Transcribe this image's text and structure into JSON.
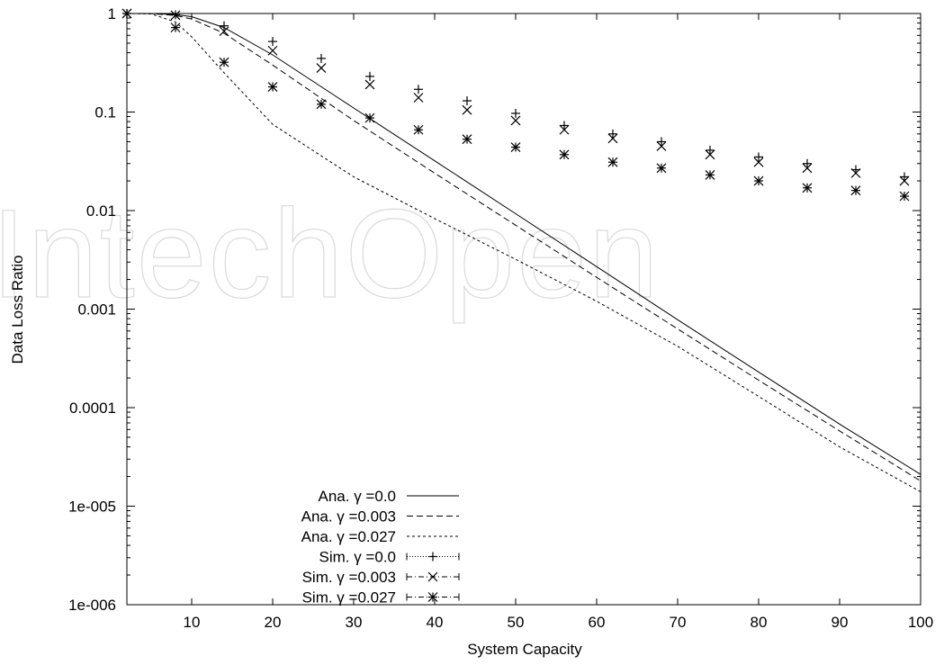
{
  "watermark": "IntechOpen",
  "chart_data": {
    "type": "line",
    "title": "",
    "xlabel": "System Capacity",
    "ylabel": "Data Loss Ratio",
    "xlim": [
      2,
      100
    ],
    "ylim": [
      1e-06,
      1
    ],
    "yscale": "log",
    "xticks": [
      10,
      20,
      30,
      40,
      50,
      60,
      70,
      80,
      90,
      100
    ],
    "xtick_labels": [
      "10",
      "20",
      "30",
      "40",
      "50",
      "60",
      "70",
      "80",
      "90",
      "100"
    ],
    "yticks": [
      1e-06,
      1e-05,
      0.0001,
      0.001,
      0.01,
      0.1,
      1
    ],
    "ytick_labels": [
      "1e-006",
      "1e-005",
      "0.0001",
      "0.001",
      "0.01",
      "0.1",
      "1"
    ],
    "grid": false,
    "legend_position": "bottom-left",
    "series": [
      {
        "name": "Ana. γ =0.0",
        "kind": "line",
        "dash": "solid",
        "x": [
          2,
          5,
          8,
          10,
          14,
          20,
          30,
          40,
          50,
          60,
          70,
          80,
          90,
          100
        ],
        "y": [
          1,
          0.999,
          0.975,
          0.93,
          0.72,
          0.38,
          0.11,
          0.032,
          0.0093,
          0.0027,
          0.00078,
          0.00023,
          6.8e-05,
          2.1e-05
        ]
      },
      {
        "name": "Ana. γ =0.003",
        "kind": "line",
        "dash": "dashed",
        "x": [
          2,
          5,
          8,
          10,
          14,
          20,
          30,
          40,
          50,
          60,
          70,
          80,
          90,
          100
        ],
        "y": [
          1,
          0.998,
          0.955,
          0.88,
          0.63,
          0.3,
          0.082,
          0.024,
          0.0071,
          0.0021,
          0.00063,
          0.00019,
          5.8e-05,
          1.8e-05
        ]
      },
      {
        "name": "Ana. γ =0.027",
        "kind": "line",
        "dash": "dotted",
        "x": [
          2,
          5,
          8,
          10,
          14,
          20,
          30,
          40,
          50,
          60,
          70,
          80,
          90,
          100
        ],
        "y": [
          1,
          0.99,
          0.82,
          0.58,
          0.25,
          0.075,
          0.022,
          0.0083,
          0.0032,
          0.0012,
          0.00042,
          0.00013,
          4e-05,
          1.4e-05
        ]
      },
      {
        "name": "Sim. γ =0.0",
        "kind": "points",
        "marker": "+",
        "x": [
          2,
          8,
          14,
          20,
          26,
          32,
          38,
          44,
          50,
          56,
          62,
          68,
          74,
          80,
          86,
          92,
          98
        ],
        "y": [
          1,
          0.97,
          0.75,
          0.52,
          0.35,
          0.23,
          0.17,
          0.13,
          0.097,
          0.073,
          0.06,
          0.05,
          0.041,
          0.035,
          0.03,
          0.026,
          0.022
        ]
      },
      {
        "name": "Sim. γ =0.003",
        "kind": "points",
        "marker": "x",
        "x": [
          2,
          8,
          14,
          20,
          26,
          32,
          38,
          44,
          50,
          56,
          62,
          68,
          74,
          80,
          86,
          92,
          98
        ],
        "y": [
          1,
          0.96,
          0.66,
          0.42,
          0.28,
          0.19,
          0.14,
          0.105,
          0.082,
          0.066,
          0.054,
          0.045,
          0.037,
          0.031,
          0.027,
          0.024,
          0.02
        ]
      },
      {
        "name": "Sim. γ =0.027",
        "kind": "points",
        "marker": "*",
        "x": [
          2,
          8,
          14,
          20,
          26,
          32,
          38,
          44,
          50,
          56,
          62,
          68,
          74,
          80,
          86,
          92,
          98
        ],
        "y": [
          1,
          0.72,
          0.32,
          0.18,
          0.12,
          0.087,
          0.066,
          0.053,
          0.044,
          0.037,
          0.031,
          0.027,
          0.023,
          0.02,
          0.017,
          0.016,
          0.014
        ]
      }
    ]
  }
}
